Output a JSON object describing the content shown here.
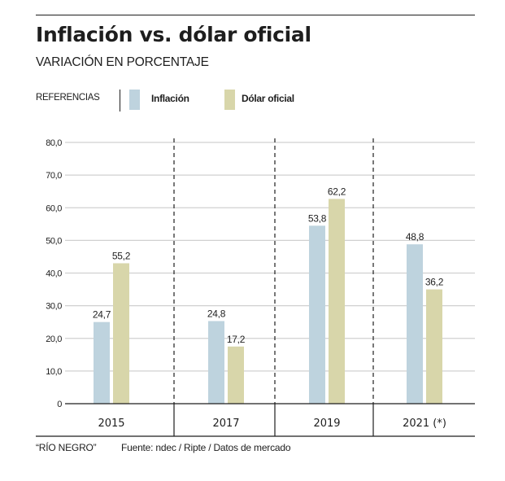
{
  "header": {
    "title": "Inflación vs. dólar oficial",
    "subtitle": "VARIACIÓN EN PORCENTAJE"
  },
  "legend": {
    "title": "REFERENCIAS",
    "items": [
      {
        "label": "Inflación",
        "color": "#bed3de"
      },
      {
        "label": "Dólar oficial",
        "color": "#d8d6aa"
      }
    ]
  },
  "footer": {
    "credit": "“RÍO NEGRO”",
    "source": "Fuente: ndec / Ripte / Datos de mercado"
  },
  "chart_data": {
    "type": "bar",
    "title": "Inflación vs. dólar oficial",
    "subtitle": "VARIACIÓN EN PORCENTAJE",
    "xlabel": "",
    "ylabel": "",
    "categories": [
      "2015",
      "2017",
      "2019",
      "2021 (*)"
    ],
    "series": [
      {
        "name": "Inflación",
        "color": "#bed3de",
        "values": [
          24.7,
          24.8,
          53.8,
          48.8
        ],
        "labels": [
          "24,7",
          "24,8",
          "53,8",
          "48,8"
        ],
        "drawn_values": [
          25.0,
          25.3,
          54.5,
          48.8
        ]
      },
      {
        "name": "Dólar oficial",
        "color": "#d8d6aa",
        "values": [
          55.2,
          17.2,
          62.2,
          36.2
        ],
        "labels": [
          "55,2",
          "17,2",
          "62,2",
          "36,2"
        ],
        "drawn_values": [
          43.0,
          17.5,
          62.7,
          35.0
        ]
      }
    ],
    "ylim": [
      0,
      80
    ],
    "yticks": [
      0,
      10,
      20,
      30,
      40,
      50,
      60,
      70,
      80
    ],
    "ytick_labels": [
      "0",
      "10,0",
      "20,0",
      "30,0",
      "40,0",
      "50,0",
      "60,0",
      "70,0",
      "80,0"
    ],
    "grid": true,
    "legend_position": "top-left",
    "note": "Bars in the source are drawn to drawn_values; labels show values"
  }
}
